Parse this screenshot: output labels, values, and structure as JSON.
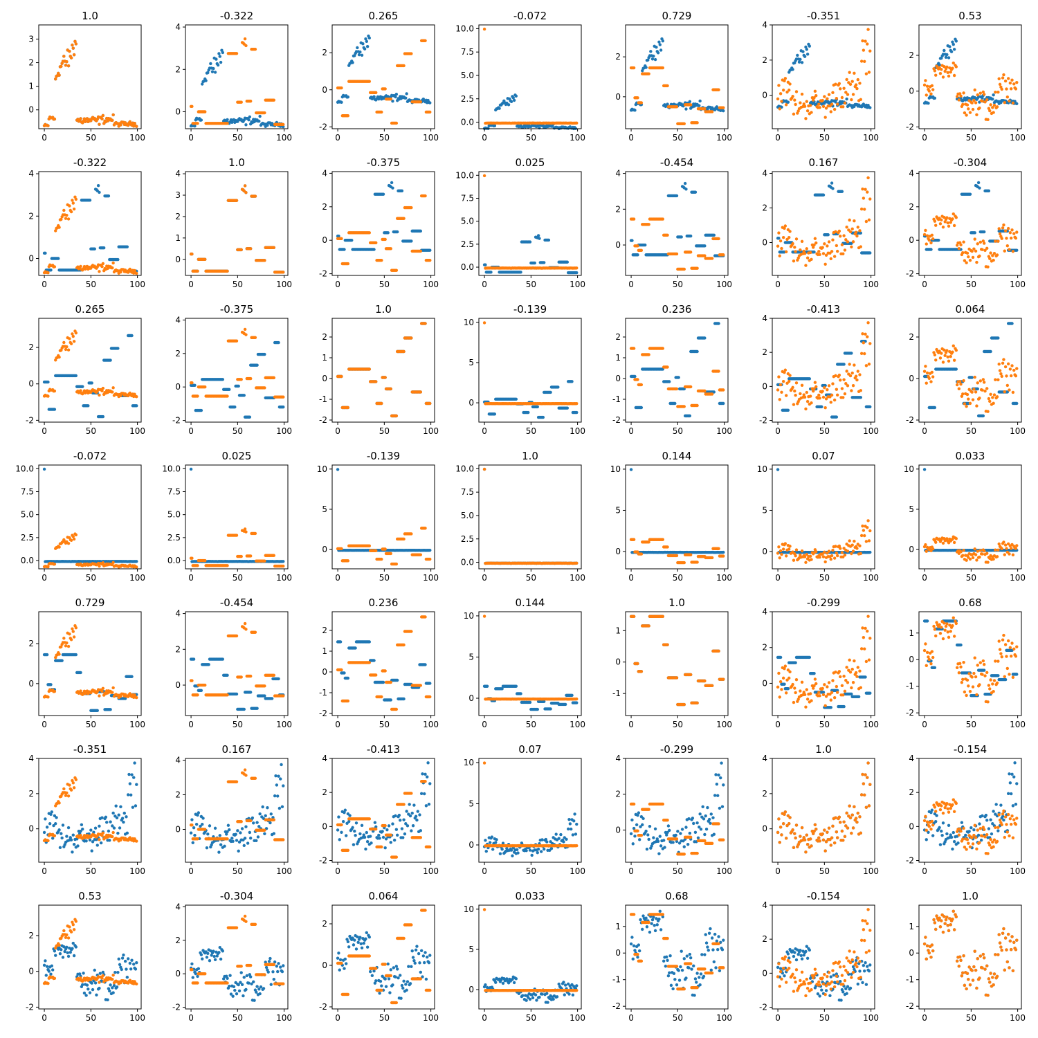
{
  "figure": {
    "rows": 7,
    "cols": 7
  },
  "colors": {
    "series_a": "#1f77b4",
    "series_b": "#ff7f0e"
  },
  "chart_data": {
    "type": "scatter",
    "n_points": 100,
    "variables": [
      {
        "id": "v0",
        "kind": "clusters",
        "segments": [
          [
            0,
            5,
            -0.68,
            0.06
          ],
          [
            5,
            12,
            -0.35,
            0.12
          ],
          [
            12,
            22,
            1.3,
            0.3
          ],
          [
            22,
            35,
            1.8,
            0.6
          ],
          [
            35,
            60,
            -0.45,
            0.15
          ],
          [
            60,
            75,
            -0.4,
            0.15
          ],
          [
            75,
            100,
            -0.6,
            0.08
          ]
        ]
      },
      {
        "id": "v1",
        "kind": "step",
        "segments": [
          [
            0,
            2,
            0.25,
            0
          ],
          [
            2,
            8,
            -0.55,
            0
          ],
          [
            8,
            16,
            0,
            0
          ],
          [
            16,
            40,
            -0.55,
            0
          ],
          [
            40,
            50,
            2.75,
            0
          ],
          [
            50,
            55,
            0.45,
            0
          ],
          [
            55,
            60,
            3.2,
            0.5
          ],
          [
            60,
            65,
            0.5,
            0
          ],
          [
            65,
            70,
            2.95,
            0
          ],
          [
            70,
            80,
            -0.05,
            0
          ],
          [
            80,
            90,
            0.55,
            0
          ],
          [
            90,
            100,
            -0.6,
            0
          ]
        ]
      },
      {
        "id": "v2",
        "kind": "step",
        "segments": [
          [
            0,
            5,
            0.1,
            0
          ],
          [
            5,
            12,
            -1.4,
            0
          ],
          [
            12,
            35,
            0.45,
            0
          ],
          [
            35,
            42,
            -0.15,
            0
          ],
          [
            42,
            48,
            -1.2,
            0
          ],
          [
            48,
            52,
            0.05,
            0
          ],
          [
            52,
            58,
            -0.5,
            0
          ],
          [
            58,
            64,
            -1.8,
            0
          ],
          [
            64,
            72,
            1.3,
            0
          ],
          [
            72,
            80,
            1.95,
            0
          ],
          [
            80,
            90,
            -0.65,
            0
          ],
          [
            90,
            95,
            2.65,
            0
          ],
          [
            95,
            100,
            -1.2,
            0
          ]
        ]
      },
      {
        "id": "v3",
        "kind": "outlier",
        "first": 9.95,
        "rest": -0.1,
        "spread": 0.01
      },
      {
        "id": "v4",
        "kind": "step",
        "segments": [
          [
            0,
            4,
            1.45,
            0
          ],
          [
            4,
            8,
            -0.05,
            0
          ],
          [
            8,
            12,
            -0.3,
            0
          ],
          [
            12,
            20,
            1.15,
            0
          ],
          [
            20,
            35,
            1.45,
            0
          ],
          [
            35,
            40,
            0.55,
            0
          ],
          [
            40,
            50,
            -0.5,
            0
          ],
          [
            50,
            58,
            -1.35,
            0
          ],
          [
            58,
            65,
            -0.4,
            0
          ],
          [
            65,
            72,
            -1.3,
            0
          ],
          [
            72,
            80,
            -0.6,
            0
          ],
          [
            80,
            88,
            -0.75,
            0
          ],
          [
            88,
            95,
            0.35,
            0
          ],
          [
            95,
            100,
            -0.55,
            0
          ]
        ]
      },
      {
        "id": "v5",
        "kind": "noise",
        "segments": [
          [
            0,
            15,
            0.2,
            0.8
          ],
          [
            15,
            60,
            -0.5,
            0.7
          ],
          [
            60,
            90,
            0.3,
            0.9
          ],
          [
            90,
            100,
            2.2,
            1.2
          ]
        ]
      },
      {
        "id": "v6",
        "kind": "noise",
        "segments": [
          [
            0,
            10,
            0.2,
            0.4
          ],
          [
            10,
            35,
            1.2,
            0.3
          ],
          [
            35,
            55,
            -0.5,
            0.8
          ],
          [
            55,
            80,
            -0.8,
            0.8
          ],
          [
            80,
            100,
            0.2,
            0.6
          ]
        ]
      }
    ],
    "panels": [
      {
        "title": "1.0",
        "x": 0,
        "y": 0,
        "ylim": [
          -0.8,
          3.6
        ],
        "yticks": [
          0,
          1,
          2,
          3
        ]
      },
      {
        "title": "-0.322",
        "x": 0,
        "y": 1,
        "ylim": [
          -0.8,
          4.1
        ],
        "yticks": [
          0,
          2,
          4
        ]
      },
      {
        "title": "0.265",
        "x": 0,
        "y": 2,
        "ylim": [
          -2.1,
          3.5
        ],
        "yticks": [
          -2,
          0,
          2
        ]
      },
      {
        "title": "-0.072",
        "x": 0,
        "y": 3,
        "ylim": [
          -0.7,
          10.4
        ],
        "yticks": [
          0.0,
          2.5,
          5.0,
          7.5,
          10.0
        ]
      },
      {
        "title": "0.729",
        "x": 0,
        "y": 4,
        "ylim": [
          -1.6,
          3.6
        ],
        "yticks": [
          0,
          2
        ]
      },
      {
        "title": "-0.351",
        "x": 0,
        "y": 5,
        "ylim": [
          -1.9,
          4.0
        ],
        "yticks": [
          0,
          2,
          4
        ]
      },
      {
        "title": "0.53",
        "x": 0,
        "y": 6,
        "ylim": [
          -2.1,
          3.7
        ],
        "yticks": [
          -2,
          0,
          2
        ]
      },
      {
        "title": "-0.322",
        "x": 1,
        "y": 0,
        "ylim": [
          -0.8,
          4.1
        ],
        "yticks": [
          0,
          2,
          4
        ]
      },
      {
        "title": "1.0",
        "x": 1,
        "y": 1,
        "ylim": [
          -0.75,
          4.1
        ],
        "yticks": [
          0,
          1,
          2,
          3,
          4
        ]
      },
      {
        "title": "-0.375",
        "x": 1,
        "y": 2,
        "ylim": [
          -2.1,
          4.1
        ],
        "yticks": [
          -2,
          0,
          2,
          4
        ]
      },
      {
        "title": "0.025",
        "x": 1,
        "y": 3,
        "ylim": [
          -0.9,
          10.4
        ],
        "yticks": [
          0.0,
          2.5,
          5.0,
          7.5,
          10.0
        ]
      },
      {
        "title": "-0.454",
        "x": 1,
        "y": 4,
        "ylim": [
          -1.7,
          4.1
        ],
        "yticks": [
          0,
          2,
          4
        ]
      },
      {
        "title": "0.167",
        "x": 1,
        "y": 5,
        "ylim": [
          -1.9,
          4.1
        ],
        "yticks": [
          0,
          2,
          4
        ]
      },
      {
        "title": "-0.304",
        "x": 1,
        "y": 6,
        "ylim": [
          -2.1,
          4.1
        ],
        "yticks": [
          -2,
          0,
          2,
          4
        ]
      },
      {
        "title": "0.265",
        "x": 2,
        "y": 0,
        "ylim": [
          -2.1,
          3.6
        ],
        "yticks": [
          -2,
          0,
          2
        ]
      },
      {
        "title": "-0.375",
        "x": 2,
        "y": 1,
        "ylim": [
          -2.1,
          4.1
        ],
        "yticks": [
          -2,
          0,
          2,
          4
        ]
      },
      {
        "title": "1.0",
        "x": 2,
        "y": 2,
        "ylim": [
          -2.1,
          2.9
        ],
        "yticks": [
          -2,
          -1,
          0,
          1,
          2
        ]
      },
      {
        "title": "-0.139",
        "x": 2,
        "y": 3,
        "ylim": [
          -2.4,
          10.5
        ],
        "yticks": [
          0,
          5,
          10
        ]
      },
      {
        "title": "0.236",
        "x": 2,
        "y": 4,
        "ylim": [
          -2.1,
          2.9
        ],
        "yticks": [
          -2,
          -1,
          0,
          1,
          2
        ]
      },
      {
        "title": "-0.413",
        "x": 2,
        "y": 5,
        "ylim": [
          -2.1,
          4.0
        ],
        "yticks": [
          -2,
          0,
          2,
          4
        ]
      },
      {
        "title": "0.064",
        "x": 2,
        "y": 6,
        "ylim": [
          -2.1,
          2.9
        ],
        "yticks": [
          -2,
          0,
          2
        ]
      },
      {
        "title": "-0.072",
        "x": 3,
        "y": 0,
        "ylim": [
          -0.9,
          10.4
        ],
        "yticks": [
          0.0,
          2.5,
          5.0,
          7.5,
          10.0
        ]
      },
      {
        "title": "0.025",
        "x": 3,
        "y": 1,
        "ylim": [
          -0.9,
          10.4
        ],
        "yticks": [
          0.0,
          2.5,
          5.0,
          7.5,
          10.0
        ]
      },
      {
        "title": "-0.139",
        "x": 3,
        "y": 2,
        "ylim": [
          -2.4,
          10.5
        ],
        "yticks": [
          0,
          5,
          10
        ]
      },
      {
        "title": "1.0",
        "x": 3,
        "y": 3,
        "ylim": [
          -0.7,
          10.4
        ],
        "yticks": [
          0.0,
          2.5,
          5.0,
          7.5,
          10.0
        ]
      },
      {
        "title": "0.144",
        "x": 3,
        "y": 4,
        "ylim": [
          -2.1,
          10.5
        ],
        "yticks": [
          0,
          5,
          10
        ]
      },
      {
        "title": "0.07",
        "x": 3,
        "y": 5,
        "ylim": [
          -2.1,
          10.5
        ],
        "yticks": [
          0,
          5,
          10
        ]
      },
      {
        "title": "0.033",
        "x": 3,
        "y": 6,
        "ylim": [
          -2.4,
          10.5
        ],
        "yticks": [
          0,
          5,
          10
        ]
      },
      {
        "title": "0.729",
        "x": 4,
        "y": 0,
        "ylim": [
          -1.6,
          3.6
        ],
        "yticks": [
          0,
          2
        ]
      },
      {
        "title": "-0.454",
        "x": 4,
        "y": 1,
        "ylim": [
          -1.7,
          4.1
        ],
        "yticks": [
          0,
          2,
          4
        ]
      },
      {
        "title": "0.236",
        "x": 4,
        "y": 2,
        "ylim": [
          -2.1,
          2.9
        ],
        "yticks": [
          -2,
          -1,
          0,
          1,
          2
        ]
      },
      {
        "title": "0.144",
        "x": 4,
        "y": 3,
        "ylim": [
          -2.1,
          10.5
        ],
        "yticks": [
          0,
          5,
          10
        ]
      },
      {
        "title": "1.0",
        "x": 4,
        "y": 4,
        "ylim": [
          -1.7,
          1.6
        ],
        "yticks": [
          -1,
          0,
          1
        ]
      },
      {
        "title": "-0.299",
        "x": 4,
        "y": 5,
        "ylim": [
          -1.8,
          4.0
        ],
        "yticks": [
          0,
          2,
          4
        ]
      },
      {
        "title": "0.68",
        "x": 4,
        "y": 6,
        "ylim": [
          -2.1,
          1.8
        ],
        "yticks": [
          -2,
          -1,
          0,
          1
        ]
      },
      {
        "title": "-0.351",
        "x": 5,
        "y": 0,
        "ylim": [
          -1.9,
          4.0
        ],
        "yticks": [
          0,
          2,
          4
        ]
      },
      {
        "title": "0.167",
        "x": 5,
        "y": 1,
        "ylim": [
          -1.9,
          4.1
        ],
        "yticks": [
          0,
          2,
          4
        ]
      },
      {
        "title": "-0.413",
        "x": 5,
        "y": 2,
        "ylim": [
          -2.1,
          4.0
        ],
        "yticks": [
          -2,
          0,
          2,
          4
        ]
      },
      {
        "title": "0.07",
        "x": 5,
        "y": 3,
        "ylim": [
          -2.1,
          10.5
        ],
        "yticks": [
          0,
          5,
          10
        ]
      },
      {
        "title": "-0.299",
        "x": 5,
        "y": 4,
        "ylim": [
          -1.8,
          4.0
        ],
        "yticks": [
          0,
          2,
          4
        ]
      },
      {
        "title": "1.0",
        "x": 5,
        "y": 5,
        "ylim": [
          -1.9,
          4.0
        ],
        "yticks": [
          0,
          2,
          4
        ]
      },
      {
        "title": "-0.154",
        "x": 5,
        "y": 6,
        "ylim": [
          -2.1,
          4.0
        ],
        "yticks": [
          -2,
          0,
          2,
          4
        ]
      },
      {
        "title": "0.53",
        "x": 6,
        "y": 0,
        "ylim": [
          -2.1,
          3.7
        ],
        "yticks": [
          -2,
          0,
          2
        ]
      },
      {
        "title": "-0.304",
        "x": 6,
        "y": 1,
        "ylim": [
          -2.1,
          4.1
        ],
        "yticks": [
          -2,
          0,
          2,
          4
        ]
      },
      {
        "title": "0.064",
        "x": 6,
        "y": 2,
        "ylim": [
          -2.1,
          2.9
        ],
        "yticks": [
          -2,
          0,
          2
        ]
      },
      {
        "title": "0.033",
        "x": 6,
        "y": 3,
        "ylim": [
          -2.4,
          10.5
        ],
        "yticks": [
          0,
          5,
          10
        ]
      },
      {
        "title": "0.68",
        "x": 6,
        "y": 4,
        "ylim": [
          -2.1,
          1.8
        ],
        "yticks": [
          -2,
          -1,
          0,
          1
        ]
      },
      {
        "title": "-0.154",
        "x": 6,
        "y": 5,
        "ylim": [
          -2.1,
          4.0
        ],
        "yticks": [
          -2,
          0,
          2,
          4
        ]
      },
      {
        "title": "1.0",
        "x": 6,
        "y": 6,
        "ylim": [
          -2.1,
          1.8
        ],
        "yticks": [
          -2,
          -1,
          0,
          1
        ]
      }
    ],
    "xlim": [
      -6,
      104
    ],
    "xticks": [
      0,
      50,
      100
    ]
  }
}
